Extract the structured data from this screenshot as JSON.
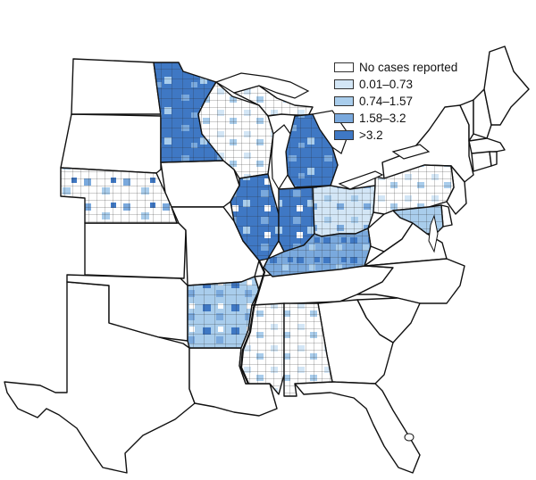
{
  "legend": {
    "items": [
      {
        "label": "No cases reported",
        "color": "#ffffff"
      },
      {
        "label": "0.01–0.73",
        "color": "#d3e6f6"
      },
      {
        "label": "0.74–1.57",
        "color": "#a9cdec"
      },
      {
        "label": "1.58–3.2",
        "color": "#7aa9dd"
      },
      {
        "label": ">3.2",
        "color": "#3f78c4"
      }
    ]
  },
  "map": {
    "states": [
      {
        "name": "Texas",
        "class": 0
      },
      {
        "name": "Oklahoma",
        "class": 0
      },
      {
        "name": "Kansas",
        "class": 0
      },
      {
        "name": "Nebraska",
        "class": 2
      },
      {
        "name": "South Dakota",
        "class": 0
      },
      {
        "name": "North Dakota",
        "class": 0
      },
      {
        "name": "Minnesota",
        "class": 4
      },
      {
        "name": "Iowa",
        "class": 0
      },
      {
        "name": "Missouri",
        "class": 0
      },
      {
        "name": "Arkansas",
        "class": 3
      },
      {
        "name": "Louisiana",
        "class": 0
      },
      {
        "name": "Mississippi",
        "class": 1
      },
      {
        "name": "Alabama",
        "class": 1
      },
      {
        "name": "Tennessee",
        "class": 0
      },
      {
        "name": "Kentucky",
        "class": 3
      },
      {
        "name": "Illinois",
        "class": 4
      },
      {
        "name": "Wisconsin",
        "class": 1
      },
      {
        "name": "Michigan",
        "class": 4
      },
      {
        "name": "Indiana",
        "class": 4
      },
      {
        "name": "Ohio",
        "class": 2
      },
      {
        "name": "West Virginia",
        "class": 0
      },
      {
        "name": "Virginia",
        "class": 0
      },
      {
        "name": "North Carolina",
        "class": 0
      },
      {
        "name": "South Carolina",
        "class": 0
      },
      {
        "name": "Georgia",
        "class": 0
      },
      {
        "name": "Florida",
        "class": 0
      },
      {
        "name": "Pennsylvania",
        "class": 1
      },
      {
        "name": "New York",
        "class": 0
      },
      {
        "name": "Maryland",
        "class": 2
      },
      {
        "name": "New Jersey",
        "class": 0
      },
      {
        "name": "Delaware",
        "class": 0
      },
      {
        "name": "Connecticut",
        "class": 0
      },
      {
        "name": "Rhode Island",
        "class": 0
      },
      {
        "name": "Massachusetts",
        "class": 0
      },
      {
        "name": "Vermont",
        "class": 0
      },
      {
        "name": "New Hampshire",
        "class": 0
      },
      {
        "name": "Maine",
        "class": 0
      }
    ]
  }
}
